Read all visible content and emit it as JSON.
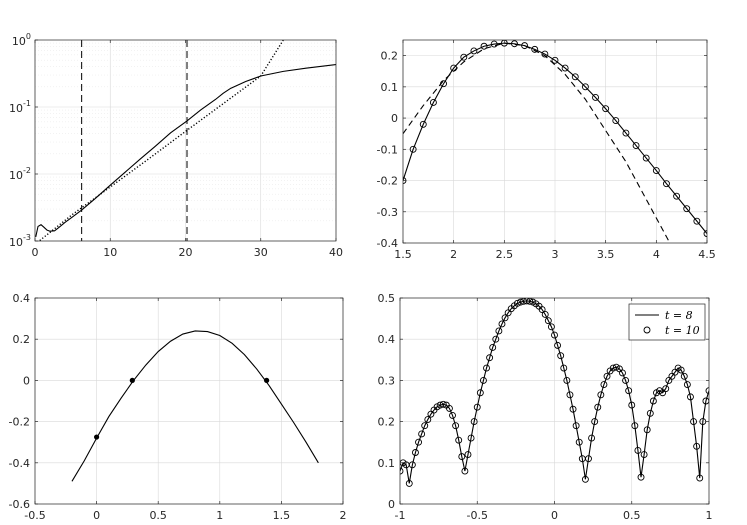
{
  "chart_data": [
    {
      "id": "top-left",
      "type": "line",
      "title": "",
      "xlabel": "",
      "ylabel": "",
      "yscale": "log",
      "xlim": [
        0,
        40
      ],
      "ylim": [
        0.001,
        1
      ],
      "x_ticks": [
        "0",
        "10",
        "20",
        "30",
        "40"
      ],
      "y_ticks": [
        {
          "base": "10",
          "exp": "-3"
        },
        {
          "base": "10",
          "exp": "-2"
        },
        {
          "base": "10",
          "exp": "-1"
        },
        {
          "base": "10",
          "exp": "0"
        }
      ],
      "grid": true,
      "vertical_lines": [
        6.2,
        20.2
      ],
      "series": [
        {
          "style": "solid",
          "x": [
            0.1,
            0.4,
            0.8,
            1.2,
            1.6,
            2.0,
            2.6,
            3.2,
            4,
            5,
            6.2,
            8,
            10,
            12,
            14,
            16,
            18,
            20.2,
            22,
            24,
            25,
            26,
            28,
            30,
            33,
            36,
            40
          ],
          "y": [
            0.00115,
            0.00165,
            0.00175,
            0.0016,
            0.00145,
            0.0014,
            0.00142,
            0.0016,
            0.0019,
            0.0023,
            0.0029,
            0.0043,
            0.0068,
            0.0107,
            0.0168,
            0.026,
            0.041,
            0.062,
            0.09,
            0.13,
            0.16,
            0.19,
            0.24,
            0.29,
            0.34,
            0.38,
            0.43
          ]
        },
        {
          "style": "dotted",
          "x": [
            0.3,
            5,
            10,
            15,
            20,
            25,
            30,
            33
          ],
          "y": [
            0.00095,
            0.0025,
            0.0064,
            0.0165,
            0.0432,
            0.112,
            0.29,
            1.0
          ]
        }
      ]
    },
    {
      "id": "top-right",
      "type": "line",
      "title": "",
      "xlabel": "",
      "ylabel": "",
      "xlim": [
        1.5,
        4.5
      ],
      "ylim": [
        -0.4,
        0.25
      ],
      "x_ticks": [
        "1.5",
        "2",
        "2.5",
        "3",
        "3.5",
        "4",
        "4.5"
      ],
      "y_ticks": [
        "-0.4",
        "-0.3",
        "-0.2",
        "-0.1",
        "0",
        "0.1",
        "0.2"
      ],
      "grid": true,
      "series": [
        {
          "style": "solid-circles",
          "x": [
            1.5,
            1.6,
            1.7,
            1.8,
            1.9,
            2.0,
            2.1,
            2.2,
            2.3,
            2.4,
            2.5,
            2.6,
            2.7,
            2.8,
            2.9,
            3.0,
            3.1,
            3.2,
            3.3,
            3.4,
            3.5,
            3.6,
            3.7,
            3.8,
            3.9,
            4.0,
            4.1,
            4.2,
            4.3,
            4.4,
            4.5
          ],
          "y": [
            -0.2,
            -0.1,
            -0.02,
            0.05,
            0.11,
            0.16,
            0.195,
            0.215,
            0.23,
            0.237,
            0.24,
            0.238,
            0.232,
            0.22,
            0.205,
            0.185,
            0.16,
            0.132,
            0.1,
            0.066,
            0.03,
            -0.008,
            -0.048,
            -0.088,
            -0.128,
            -0.168,
            -0.21,
            -0.25,
            -0.29,
            -0.33,
            -0.37
          ]
        },
        {
          "style": "dashed",
          "x": [
            1.5,
            1.7,
            1.9,
            2.1,
            2.3,
            2.5,
            2.7,
            2.9,
            3.1,
            3.3,
            3.5,
            3.7,
            3.9,
            4.1,
            4.15
          ],
          "y": [
            -0.05,
            0.04,
            0.12,
            0.18,
            0.222,
            0.24,
            0.232,
            0.2,
            0.14,
            0.06,
            -0.04,
            -0.14,
            -0.26,
            -0.38,
            -0.41
          ]
        }
      ]
    },
    {
      "id": "bottom-left",
      "type": "line",
      "title": "",
      "xlabel": "",
      "ylabel": "",
      "xlim": [
        -0.5,
        2
      ],
      "ylim": [
        -0.6,
        0.4
      ],
      "x_ticks": [
        "-0.5",
        "0",
        "0.5",
        "1",
        "1.5",
        "2"
      ],
      "y_ticks": [
        "-0.6",
        "-0.4",
        "-0.2",
        "0",
        "0.2",
        "0.4"
      ],
      "grid": true,
      "series": [
        {
          "style": "solid",
          "x": [
            -0.2,
            -0.1,
            0.0,
            0.1,
            0.2,
            0.3,
            0.4,
            0.5,
            0.6,
            0.7,
            0.8,
            0.9,
            1.0,
            1.1,
            1.2,
            1.3,
            1.4,
            1.5,
            1.6,
            1.7,
            1.8
          ],
          "y": [
            -0.49,
            -0.39,
            -0.28,
            -0.175,
            -0.085,
            0.0,
            0.075,
            0.14,
            0.19,
            0.225,
            0.24,
            0.237,
            0.218,
            0.18,
            0.125,
            0.055,
            -0.025,
            -0.115,
            -0.205,
            -0.3,
            -0.4
          ]
        }
      ],
      "points": {
        "x": [
          0.0,
          0.29,
          1.38
        ],
        "y": [
          -0.275,
          0.0,
          0.0
        ]
      }
    },
    {
      "id": "bottom-right",
      "type": "line",
      "title": "",
      "xlabel": "",
      "ylabel": "",
      "xlim": [
        -1,
        1
      ],
      "ylim": [
        0,
        0.5
      ],
      "x_ticks": [
        "-1",
        "-0.5",
        "0",
        "0.5",
        "1"
      ],
      "y_ticks": [
        "0",
        "0.1",
        "0.2",
        "0.3",
        "0.4",
        "0.5"
      ],
      "grid": true,
      "legend": {
        "placement": "top-right",
        "entries": [
          "t = 8",
          "t = 10"
        ]
      },
      "series": [
        {
          "name": "t = 8",
          "style": "solid",
          "x": [
            -1.0,
            -0.98,
            -0.96,
            -0.94,
            -0.92,
            -0.9,
            -0.88,
            -0.86,
            -0.84,
            -0.82,
            -0.8,
            -0.78,
            -0.76,
            -0.74,
            -0.72,
            -0.7,
            -0.68,
            -0.66,
            -0.64,
            -0.62,
            -0.6,
            -0.58,
            -0.56,
            -0.54,
            -0.52,
            -0.5,
            -0.48,
            -0.46,
            -0.44,
            -0.42,
            -0.4,
            -0.38,
            -0.36,
            -0.34,
            -0.32,
            -0.3,
            -0.28,
            -0.26,
            -0.24,
            -0.22,
            -0.2,
            -0.18,
            -0.16,
            -0.14,
            -0.12,
            -0.1,
            -0.08,
            -0.06,
            -0.04,
            -0.02,
            0.0,
            0.02,
            0.04,
            0.06,
            0.08,
            0.1,
            0.12,
            0.14,
            0.16,
            0.18,
            0.2,
            0.22,
            0.24,
            0.26,
            0.28,
            0.3,
            0.32,
            0.34,
            0.36,
            0.38,
            0.4,
            0.42,
            0.44,
            0.46,
            0.48,
            0.5,
            0.52,
            0.54,
            0.56,
            0.58,
            0.6,
            0.62,
            0.64,
            0.66,
            0.68,
            0.7,
            0.72,
            0.74,
            0.76,
            0.78,
            0.8,
            0.82,
            0.84,
            0.86,
            0.88,
            0.9,
            0.92,
            0.94,
            0.96,
            0.98,
            1.0
          ],
          "y": [
            0.08,
            0.1,
            0.095,
            0.05,
            0.095,
            0.125,
            0.15,
            0.17,
            0.19,
            0.205,
            0.218,
            0.228,
            0.236,
            0.24,
            0.242,
            0.24,
            0.232,
            0.215,
            0.19,
            0.155,
            0.115,
            0.08,
            0.12,
            0.16,
            0.2,
            0.235,
            0.27,
            0.3,
            0.33,
            0.355,
            0.38,
            0.4,
            0.42,
            0.437,
            0.452,
            0.464,
            0.474,
            0.481,
            0.487,
            0.49,
            0.492,
            0.493,
            0.492,
            0.49,
            0.486,
            0.48,
            0.472,
            0.46,
            0.445,
            0.43,
            0.41,
            0.385,
            0.36,
            0.33,
            0.3,
            0.265,
            0.23,
            0.19,
            0.15,
            0.11,
            0.06,
            0.11,
            0.16,
            0.2,
            0.235,
            0.265,
            0.29,
            0.31,
            0.323,
            0.33,
            0.332,
            0.328,
            0.318,
            0.3,
            0.275,
            0.24,
            0.19,
            0.13,
            0.065,
            0.12,
            0.18,
            0.22,
            0.25,
            0.27,
            0.275,
            0.27,
            0.28,
            0.3,
            0.31,
            0.32,
            0.33,
            0.325,
            0.31,
            0.29,
            0.26,
            0.2,
            0.14,
            0.063,
            0.2,
            0.25,
            0.275
          ]
        },
        {
          "name": "t = 10",
          "style": "circles",
          "x": [
            -1.0,
            -0.98,
            -0.96,
            -0.94,
            -0.92,
            -0.9,
            -0.88,
            -0.86,
            -0.84,
            -0.82,
            -0.8,
            -0.78,
            -0.76,
            -0.74,
            -0.72,
            -0.7,
            -0.68,
            -0.66,
            -0.64,
            -0.62,
            -0.6,
            -0.58,
            -0.56,
            -0.54,
            -0.52,
            -0.5,
            -0.48,
            -0.46,
            -0.44,
            -0.42,
            -0.4,
            -0.38,
            -0.36,
            -0.34,
            -0.32,
            -0.3,
            -0.28,
            -0.26,
            -0.24,
            -0.22,
            -0.2,
            -0.18,
            -0.16,
            -0.14,
            -0.12,
            -0.1,
            -0.08,
            -0.06,
            -0.04,
            -0.02,
            0.0,
            0.02,
            0.04,
            0.06,
            0.08,
            0.1,
            0.12,
            0.14,
            0.16,
            0.18,
            0.2,
            0.22,
            0.24,
            0.26,
            0.28,
            0.3,
            0.32,
            0.34,
            0.36,
            0.38,
            0.4,
            0.42,
            0.44,
            0.46,
            0.48,
            0.5,
            0.52,
            0.54,
            0.56,
            0.58,
            0.6,
            0.62,
            0.64,
            0.66,
            0.68,
            0.7,
            0.72,
            0.74,
            0.76,
            0.78,
            0.8,
            0.82,
            0.84,
            0.86,
            0.88,
            0.9,
            0.92,
            0.94,
            0.96,
            0.98,
            1.0
          ],
          "y": [
            0.08,
            0.1,
            0.095,
            0.05,
            0.095,
            0.125,
            0.15,
            0.17,
            0.19,
            0.205,
            0.218,
            0.228,
            0.236,
            0.24,
            0.242,
            0.24,
            0.232,
            0.215,
            0.19,
            0.155,
            0.115,
            0.08,
            0.12,
            0.16,
            0.2,
            0.235,
            0.27,
            0.3,
            0.33,
            0.355,
            0.38,
            0.4,
            0.42,
            0.437,
            0.452,
            0.464,
            0.474,
            0.481,
            0.487,
            0.49,
            0.492,
            0.493,
            0.492,
            0.49,
            0.486,
            0.48,
            0.472,
            0.46,
            0.445,
            0.43,
            0.41,
            0.385,
            0.36,
            0.33,
            0.3,
            0.265,
            0.23,
            0.19,
            0.15,
            0.11,
            0.06,
            0.11,
            0.16,
            0.2,
            0.235,
            0.265,
            0.29,
            0.31,
            0.323,
            0.33,
            0.332,
            0.328,
            0.318,
            0.3,
            0.275,
            0.24,
            0.19,
            0.13,
            0.065,
            0.12,
            0.18,
            0.22,
            0.25,
            0.27,
            0.275,
            0.27,
            0.28,
            0.3,
            0.31,
            0.32,
            0.33,
            0.325,
            0.31,
            0.29,
            0.26,
            0.2,
            0.14,
            0.063,
            0.2,
            0.25,
            0.275
          ]
        }
      ]
    }
  ]
}
